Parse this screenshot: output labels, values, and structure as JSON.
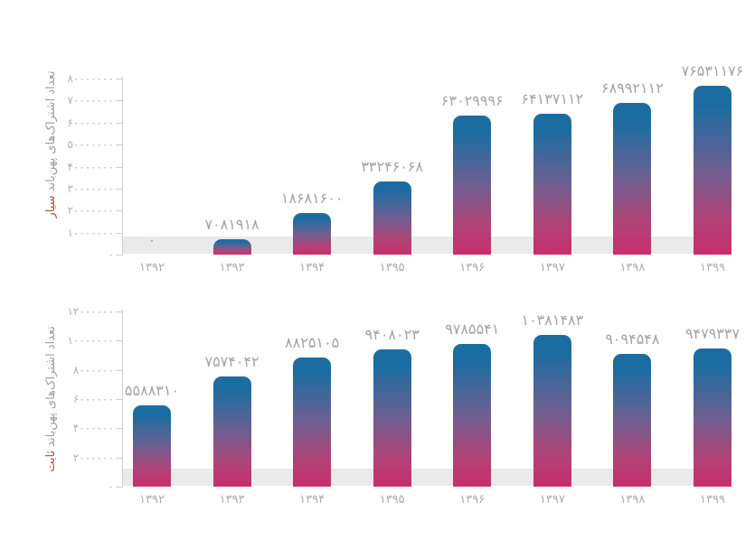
{
  "page": {
    "background": "#ffffff"
  },
  "colors": {
    "bar_top": "#1B6DA1",
    "bar_mid": "#6E5F92",
    "bar_lower": "#AF4477",
    "bar_bottom": "#C72F6B",
    "band": "#EBEAEA",
    "axis": "#CCCCCC",
    "tick_label": "#B3B1B1",
    "value_label": "#A6A4A4",
    "year_label": "#ADABAB",
    "axis_title": "#9E9C9C",
    "accent_red": "#A8503E"
  },
  "chart_data": [
    {
      "id": "mobile",
      "type": "bar",
      "title": "",
      "ylabel_main": "تعداد اشتراک‌های پهن‌باند",
      "ylabel_accent": "سیار",
      "categories": [
        "۱۳۹۲",
        "۱۳۹۳",
        "۱۳۹۴",
        "۱۳۹۵",
        "۱۳۹۶",
        "۱۳۹۷",
        "۱۳۹۸",
        "۱۳۹۹"
      ],
      "values": [
        0,
        7081918,
        18681600,
        33246068,
        63029996,
        64137112,
        68992112,
        76531176
      ],
      "value_labels": [
        "۰",
        "۷۰۸۱۹۱۸",
        "۱۸۶۸۱۶۰۰",
        "۳۳۲۴۶۰۶۸",
        "۶۳۰۲۹۹۹۶",
        "۶۴۱۳۷۱۱۲",
        "۶۸۹۹۲۱۱۲",
        "۷۶۵۳۱۱۷۶"
      ],
      "ylim": [
        0,
        80000000
      ],
      "ytick_step": 10000000,
      "ytick_values": [
        0,
        10000000,
        20000000,
        30000000,
        40000000,
        50000000,
        60000000,
        70000000,
        80000000
      ],
      "ytick_labels": [
        "۰",
        "۱۰۰۰۰۰۰۰",
        "۲۰۰۰۰۰۰۰",
        "۳۰۰۰۰۰۰۰",
        "۴۰۰۰۰۰۰۰",
        "۵۰۰۰۰۰۰۰",
        "۶۰۰۰۰۰۰۰",
        "۷۰۰۰۰۰۰۰",
        "۸۰۰۰۰۰۰۰"
      ],
      "grid": false,
      "legend": "none",
      "compressed_label_indices": []
    },
    {
      "id": "fixed",
      "type": "bar",
      "title": "",
      "ylabel_main": "تعداد اشتراک‌های پهن‌باند",
      "ylabel_accent": "ثابت",
      "categories": [
        "۱۳۹۲",
        "۱۳۹۳",
        "۱۳۹۴",
        "۱۳۹۵",
        "۱۳۹۶",
        "۱۳۹۷",
        "۱۳۹۸",
        "۱۳۹۹"
      ],
      "values": [
        5588310,
        7574042,
        8825105,
        9408023,
        9785541,
        10381483,
        9094548,
        9479337
      ],
      "value_labels": [
        "۵۵۸۸۳۱۰",
        "۷۵۷۴۰۴۲",
        "۸۸۲۵۱۰۵",
        "۹۴۰۸۰۲۳",
        "۹۷۸۵۵۴۱",
        "۱۰۳۸۱۴۸۳",
        "۹۰۹۴۵۴۸",
        "۹۴۷۹۳۳۷"
      ],
      "ylim": [
        0,
        12000000
      ],
      "ytick_step": 2000000,
      "ytick_values": [
        0,
        2000000,
        4000000,
        6000000,
        8000000,
        10000000,
        12000000
      ],
      "ytick_labels": [
        "۰",
        "۲۰۰۰۰۰۰",
        "۴۰۰۰۰۰۰",
        "۶۰۰۰۰۰۰",
        "۸۰۰۰۰۰۰",
        "۱۰۰۰۰۰۰۰",
        "۱۲۰۰۰۰۰۰"
      ],
      "grid": false,
      "legend": "none",
      "compressed_label_indices": [
        0
      ]
    }
  ]
}
